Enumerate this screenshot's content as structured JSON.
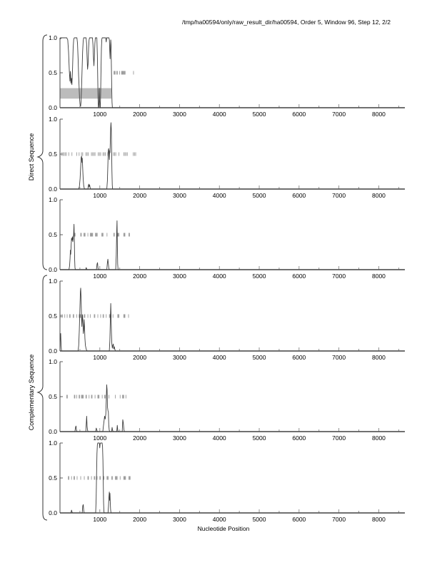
{
  "title": "/tmp/ha00594/only/raw_result_dir/ha00594, Order 5, Window 96, Step 12, 2/2",
  "x_axis_label": "Nucleotide Position",
  "groups": [
    {
      "label": "Direct Sequence",
      "panels": [
        1,
        2,
        3
      ]
    },
    {
      "label": "Complementary Sequence",
      "panels": [
        4,
        5,
        6
      ]
    }
  ],
  "axis": {
    "x_min": 0,
    "x_max": 8655,
    "x_major_ticks": [
      1000,
      2000,
      3000,
      4000,
      5000,
      6000,
      7000,
      8000
    ],
    "x_tick_labels": [
      "1000",
      "2000",
      "3000",
      "4000",
      "5000",
      "6000",
      "7000",
      "8000"
    ],
    "x_minor_step": 500,
    "y_tick_values": [
      1.0,
      0.5,
      0.0
    ],
    "y_tick_labels": [
      "1.0",
      "0.5",
      "0.0"
    ]
  },
  "colors": {
    "curve": "#3d3d3d",
    "markers": "#999999",
    "highlight": "#bcbcbc",
    "axis": "#4a4a4a",
    "text": "#000000"
  },
  "chart_data": [
    {
      "type": "line",
      "name": "direct-frame-1",
      "group": "Direct Sequence",
      "ylim": [
        0,
        1
      ],
      "curve": [
        [
          0,
          0.98
        ],
        [
          40,
          1
        ],
        [
          170,
          1
        ],
        [
          195,
          0.97
        ],
        [
          215,
          0.8
        ],
        [
          235,
          0.52
        ],
        [
          250,
          0.38
        ],
        [
          262,
          0.52
        ],
        [
          275,
          0.35
        ],
        [
          290,
          0.42
        ],
        [
          300,
          0.33
        ],
        [
          315,
          0.55
        ],
        [
          330,
          0.85
        ],
        [
          345,
          0.98
        ],
        [
          360,
          1
        ],
        [
          425,
          1
        ],
        [
          440,
          0.92
        ],
        [
          455,
          0.7
        ],
        [
          468,
          0.45
        ],
        [
          480,
          0.3
        ],
        [
          492,
          0.12
        ],
        [
          505,
          0.04
        ],
        [
          518,
          0.02
        ],
        [
          530,
          0.1
        ],
        [
          542,
          0.3
        ],
        [
          555,
          0.55
        ],
        [
          568,
          0.8
        ],
        [
          582,
          0.95
        ],
        [
          595,
          1
        ],
        [
          655,
          1
        ],
        [
          668,
          0.92
        ],
        [
          680,
          0.72
        ],
        [
          692,
          0.55
        ],
        [
          705,
          0.62
        ],
        [
          718,
          0.85
        ],
        [
          730,
          0.97
        ],
        [
          742,
          1
        ],
        [
          815,
          1
        ],
        [
          828,
          0.9
        ],
        [
          840,
          0.72
        ],
        [
          852,
          0.6
        ],
        [
          864,
          0.75
        ],
        [
          876,
          0.92
        ],
        [
          888,
          1
        ],
        [
          925,
          1
        ],
        [
          938,
          0.75
        ],
        [
          948,
          0.4
        ],
        [
          956,
          0.12
        ],
        [
          963,
          0.01
        ],
        [
          972,
          0
        ],
        [
          980,
          0.08
        ],
        [
          988,
          0.28
        ],
        [
          995,
          0.1
        ],
        [
          1003,
          0.01
        ],
        [
          1012,
          0
        ],
        [
          1020,
          0.2
        ],
        [
          1030,
          0.55
        ],
        [
          1040,
          0.85
        ],
        [
          1050,
          0.98
        ],
        [
          1060,
          1
        ],
        [
          1148,
          1
        ],
        [
          1160,
          0.94
        ],
        [
          1172,
          1
        ],
        [
          1228,
          1
        ],
        [
          1240,
          0.97
        ],
        [
          1250,
          0.8
        ],
        [
          1258,
          0.7
        ],
        [
          1266,
          0.85
        ],
        [
          1274,
          0.97
        ],
        [
          1282,
          0.9
        ],
        [
          1290,
          0.6
        ],
        [
          1298,
          0.3
        ],
        [
          1306,
          0.08
        ],
        [
          1314,
          0.01
        ],
        [
          1322,
          0
        ],
        [
          8650,
          0
        ]
      ],
      "markers_y": 0.5,
      "markers": [
        1355,
        1370,
        1385,
        1425,
        1440,
        1495,
        1545,
        1560,
        1575,
        1590,
        1605,
        1620,
        1635,
        1845
      ],
      "highlight": {
        "x": [
          0,
          1290
        ],
        "y": [
          0.13,
          0.28
        ]
      }
    },
    {
      "type": "line",
      "name": "direct-frame-2",
      "group": "Direct Sequence",
      "ylim": [
        0,
        1
      ],
      "curve": [
        [
          0,
          0
        ],
        [
          470,
          0
        ],
        [
          488,
          0.04
        ],
        [
          505,
          0.15
        ],
        [
          520,
          0.32
        ],
        [
          532,
          0.45
        ],
        [
          542,
          0.47
        ],
        [
          552,
          0.38
        ],
        [
          560,
          0.44
        ],
        [
          570,
          0.3
        ],
        [
          582,
          0.15
        ],
        [
          595,
          0.05
        ],
        [
          610,
          0.01
        ],
        [
          625,
          0
        ],
        [
          700,
          0
        ],
        [
          712,
          0.05
        ],
        [
          722,
          0.07
        ],
        [
          732,
          0.03
        ],
        [
          744,
          0.06
        ],
        [
          756,
          0.02
        ],
        [
          770,
          0
        ],
        [
          1175,
          0
        ],
        [
          1190,
          0.12
        ],
        [
          1202,
          0.35
        ],
        [
          1212,
          0.55
        ],
        [
          1222,
          0.58
        ],
        [
          1232,
          0.5
        ],
        [
          1240,
          0.42
        ],
        [
          1248,
          0.55
        ],
        [
          1256,
          0.52
        ],
        [
          1264,
          0.7
        ],
        [
          1272,
          0.88
        ],
        [
          1280,
          0.95
        ],
        [
          1288,
          0.85
        ],
        [
          1296,
          0.55
        ],
        [
          1304,
          0.25
        ],
        [
          1312,
          0.06
        ],
        [
          1320,
          0
        ],
        [
          8650,
          0
        ]
      ],
      "markers_y": 0.5,
      "markers": [
        40,
        70,
        100,
        130,
        160,
        220,
        300,
        420,
        480,
        540,
        570,
        650,
        680,
        710,
        790,
        820,
        850,
        880,
        960,
        990,
        1020,
        1080,
        1110,
        1140,
        1200,
        1340,
        1370,
        1400,
        1480,
        1600,
        1630,
        1660,
        1690,
        1840,
        1870,
        1900
      ],
      "highlight": null
    },
    {
      "type": "line",
      "name": "direct-frame-3",
      "group": "Direct Sequence",
      "ylim": [
        0,
        1
      ],
      "curve": [
        [
          0,
          0
        ],
        [
          225,
          0
        ],
        [
          240,
          0.05
        ],
        [
          252,
          0.15
        ],
        [
          262,
          0.28
        ],
        [
          270,
          0.22
        ],
        [
          280,
          0.35
        ],
        [
          290,
          0.45
        ],
        [
          300,
          0.42
        ],
        [
          312,
          0.47
        ],
        [
          322,
          0.4
        ],
        [
          332,
          0.45
        ],
        [
          342,
          0.5
        ],
        [
          352,
          0.65
        ],
        [
          360,
          0.45
        ],
        [
          368,
          0.15
        ],
        [
          376,
          0.03
        ],
        [
          386,
          0
        ],
        [
          645,
          0
        ],
        [
          658,
          0.03
        ],
        [
          670,
          0.01
        ],
        [
          682,
          0
        ],
        [
          915,
          0
        ],
        [
          930,
          0.08
        ],
        [
          942,
          0.1
        ],
        [
          952,
          0.03
        ],
        [
          964,
          0
        ],
        [
          1175,
          0
        ],
        [
          1190,
          0.1
        ],
        [
          1202,
          0.15
        ],
        [
          1214,
          0.08
        ],
        [
          1226,
          0.02
        ],
        [
          1240,
          0
        ],
        [
          1398,
          0
        ],
        [
          1412,
          0.2
        ],
        [
          1424,
          0.55
        ],
        [
          1432,
          0.7
        ],
        [
          1440,
          0.35
        ],
        [
          1448,
          0.08
        ],
        [
          1458,
          0
        ],
        [
          8650,
          0
        ]
      ],
      "markers_y": 0.5,
      "markers": [
        350,
        365,
        380,
        520,
        535,
        600,
        615,
        630,
        700,
        760,
        775,
        790,
        805,
        820,
        890,
        905,
        920,
        935,
        1050,
        1065,
        1080,
        1180,
        1350,
        1365,
        1450,
        1465,
        1480,
        1600,
        1615,
        1630,
        1730,
        1745
      ],
      "highlight": null
    },
    {
      "type": "line",
      "name": "complementary-frame-1",
      "group": "Complementary Sequence",
      "ylim": [
        0,
        1
      ],
      "curve": [
        [
          0,
          0
        ],
        [
          8,
          0.22
        ],
        [
          18,
          0.25
        ],
        [
          28,
          0.08
        ],
        [
          38,
          0
        ],
        [
          455,
          0
        ],
        [
          470,
          0.08
        ],
        [
          485,
          0.3
        ],
        [
          500,
          0.6
        ],
        [
          512,
          0.85
        ],
        [
          520,
          0.9
        ],
        [
          530,
          0.75
        ],
        [
          540,
          0.5
        ],
        [
          550,
          0.35
        ],
        [
          558,
          0.45
        ],
        [
          566,
          0.52
        ],
        [
          576,
          0.4
        ],
        [
          586,
          0.25
        ],
        [
          596,
          0.3
        ],
        [
          606,
          0.45
        ],
        [
          616,
          0.35
        ],
        [
          626,
          0.18
        ],
        [
          638,
          0.08
        ],
        [
          652,
          0.04
        ],
        [
          668,
          0.01
        ],
        [
          685,
          0
        ],
        [
          1238,
          0
        ],
        [
          1252,
          0.15
        ],
        [
          1264,
          0.45
        ],
        [
          1274,
          0.68
        ],
        [
          1282,
          0.5
        ],
        [
          1292,
          0.25
        ],
        [
          1302,
          0.1
        ],
        [
          1314,
          0.04
        ],
        [
          1326,
          0.08
        ],
        [
          1338,
          0.1
        ],
        [
          1350,
          0.03
        ],
        [
          1364,
          0.06
        ],
        [
          1378,
          0.02
        ],
        [
          1394,
          0
        ],
        [
          8650,
          0
        ]
      ],
      "markers_y": 0.5,
      "markers": [
        30,
        60,
        120,
        180,
        240,
        255,
        330,
        345,
        420,
        480,
        495,
        510,
        525,
        540,
        610,
        625,
        700,
        760,
        860,
        875,
        950,
        1020,
        1080,
        1095,
        1160,
        1240,
        1255,
        1330,
        1450,
        1465,
        1480,
        1600,
        1615,
        1630,
        1720
      ],
      "highlight": null
    },
    {
      "type": "line",
      "name": "complementary-frame-2",
      "group": "Complementary Sequence",
      "ylim": [
        0,
        1
      ],
      "curve": [
        [
          0,
          0
        ],
        [
          375,
          0
        ],
        [
          390,
          0.06
        ],
        [
          402,
          0.08
        ],
        [
          414,
          0.02
        ],
        [
          428,
          0
        ],
        [
          648,
          0
        ],
        [
          660,
          0.12
        ],
        [
          670,
          0.22
        ],
        [
          680,
          0.08
        ],
        [
          692,
          0.02
        ],
        [
          705,
          0
        ],
        [
          895,
          0
        ],
        [
          910,
          0.05
        ],
        [
          922,
          0.03
        ],
        [
          936,
          0
        ],
        [
          1075,
          0
        ],
        [
          1090,
          0.08
        ],
        [
          1105,
          0.15
        ],
        [
          1120,
          0.22
        ],
        [
          1135,
          0.18
        ],
        [
          1150,
          0.25
        ],
        [
          1162,
          0.45
        ],
        [
          1172,
          0.67
        ],
        [
          1182,
          0.6
        ],
        [
          1192,
          0.35
        ],
        [
          1204,
          0.3
        ],
        [
          1214,
          0.28
        ],
        [
          1224,
          0.1
        ],
        [
          1236,
          0.02
        ],
        [
          1250,
          0
        ],
        [
          1295,
          0
        ],
        [
          1308,
          0.06
        ],
        [
          1320,
          0.02
        ],
        [
          1334,
          0
        ],
        [
          1425,
          0
        ],
        [
          1438,
          0.09
        ],
        [
          1450,
          0.02
        ],
        [
          1464,
          0
        ],
        [
          1562,
          0
        ],
        [
          1576,
          0.17
        ],
        [
          1590,
          0.12
        ],
        [
          1604,
          0.03
        ],
        [
          1618,
          0
        ],
        [
          8650,
          0
        ]
      ],
      "markers_y": 0.5,
      "markers": [
        170,
        185,
        360,
        375,
        420,
        480,
        495,
        540,
        555,
        570,
        585,
        650,
        665,
        730,
        790,
        805,
        880,
        950,
        965,
        980,
        1060,
        1120,
        1135,
        1230,
        1390,
        1510,
        1570,
        1585,
        1600,
        1655
      ],
      "highlight": null
    },
    {
      "type": "line",
      "name": "complementary-frame-3",
      "group": "Complementary Sequence",
      "ylim": [
        0,
        1
      ],
      "curve": [
        [
          0,
          0
        ],
        [
          275,
          0
        ],
        [
          290,
          0.04
        ],
        [
          305,
          0.01
        ],
        [
          320,
          0
        ],
        [
          558,
          0
        ],
        [
          572,
          0.1
        ],
        [
          584,
          0.12
        ],
        [
          596,
          0.03
        ],
        [
          610,
          0
        ],
        [
          895,
          0
        ],
        [
          908,
          0.2
        ],
        [
          918,
          0.55
        ],
        [
          928,
          0.85
        ],
        [
          938,
          0.97
        ],
        [
          948,
          1
        ],
        [
          988,
          1
        ],
        [
          998,
          0.93
        ],
        [
          1008,
          0.99
        ],
        [
          1018,
          1
        ],
        [
          1058,
          1
        ],
        [
          1068,
          0.95
        ],
        [
          1078,
          0.75
        ],
        [
          1086,
          0.45
        ],
        [
          1094,
          0.15
        ],
        [
          1102,
          0.02
        ],
        [
          1112,
          0
        ],
        [
          1205,
          0
        ],
        [
          1218,
          0.1
        ],
        [
          1228,
          0.22
        ],
        [
          1238,
          0.3
        ],
        [
          1246,
          0.18
        ],
        [
          1254,
          0.28
        ],
        [
          1262,
          0.15
        ],
        [
          1270,
          0.05
        ],
        [
          1280,
          0
        ],
        [
          8650,
          0
        ]
      ],
      "markers_y": 0.5,
      "markers": [
        210,
        225,
        290,
        350,
        365,
        430,
        520,
        610,
        700,
        715,
        790,
        860,
        875,
        930,
        1000,
        1015,
        1090,
        1105,
        1180,
        1195,
        1210,
        1300,
        1315,
        1390,
        1405,
        1420,
        1435,
        1510,
        1600,
        1615,
        1630,
        1645,
        1730,
        1745,
        1760
      ],
      "highlight": null
    }
  ]
}
